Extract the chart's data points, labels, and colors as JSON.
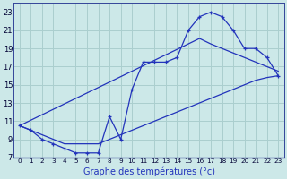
{
  "xlabel": "Graphe des températures (°c)",
  "bg_color": "#cce8e8",
  "grid_color": "#aacece",
  "line_color": "#2233bb",
  "x_hours": [
    0,
    1,
    2,
    3,
    4,
    5,
    6,
    7,
    8,
    9,
    10,
    11,
    12,
    13,
    14,
    15,
    16,
    17,
    18,
    19,
    20,
    21,
    22,
    23
  ],
  "temp_actual": [
    10.5,
    10.0,
    9.0,
    8.5,
    8.0,
    7.5,
    7.5,
    7.5,
    11.5,
    9.0,
    14.5,
    17.5,
    17.5,
    17.5,
    18.0,
    21.0,
    22.5,
    23.0,
    22.5,
    21.0,
    19.0,
    19.0,
    18.0,
    16.0
  ],
  "trend_high": [
    10.5,
    11.1,
    11.7,
    12.3,
    12.9,
    13.5,
    14.1,
    14.7,
    15.3,
    15.9,
    16.5,
    17.1,
    17.7,
    18.3,
    18.9,
    19.5,
    20.1,
    19.5,
    19.0,
    18.5,
    18.0,
    17.5,
    17.0,
    16.5
  ],
  "trend_low": [
    10.5,
    10.0,
    9.5,
    9.0,
    8.5,
    8.5,
    8.5,
    8.5,
    9.0,
    9.5,
    10.0,
    10.5,
    11.0,
    11.5,
    12.0,
    12.5,
    13.0,
    13.5,
    14.0,
    14.5,
    15.0,
    15.5,
    15.8,
    16.0
  ],
  "ylim": [
    7,
    24
  ],
  "xlim": [
    0,
    23
  ],
  "yticks": [
    7,
    9,
    11,
    13,
    15,
    17,
    19,
    21,
    23
  ],
  "xticks": [
    0,
    1,
    2,
    3,
    4,
    5,
    6,
    7,
    8,
    9,
    10,
    11,
    12,
    13,
    14,
    15,
    16,
    17,
    18,
    19,
    20,
    21,
    22,
    23
  ],
  "figsize": [
    3.2,
    2.0
  ],
  "dpi": 100
}
